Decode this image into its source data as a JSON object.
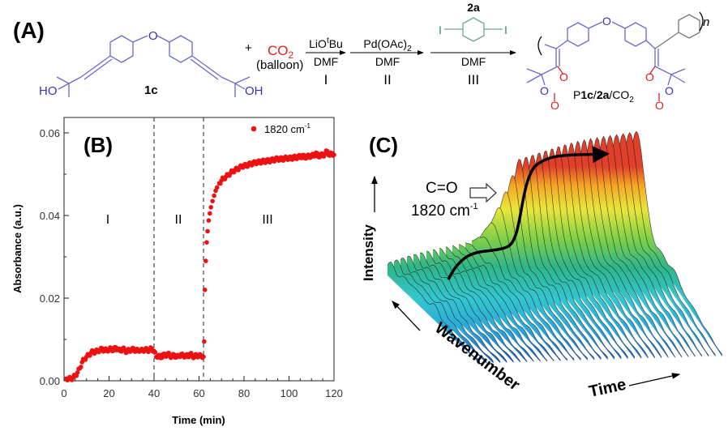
{
  "panel_a": {
    "label": "(A)",
    "reactant_label": "1c",
    "reactant_ho": "HO",
    "reactant_oh": "OH",
    "ether_o": "O",
    "plus": "+",
    "co2": {
      "main": "CO",
      "sub": "2"
    },
    "balloon": "(balloon)",
    "steps": [
      {
        "above_main": "LiO",
        "above_sup": "t",
        "above_tail": "Bu",
        "below": "DMF",
        "roman": "I"
      },
      {
        "above_main": "Pd(OAc)",
        "above_sub": "2",
        "below": "DMF",
        "roman": "II"
      },
      {
        "above_main": "2a",
        "below": "DMF",
        "roman": "III",
        "iodo_left": "I",
        "iodo_right": "I"
      }
    ],
    "product": {
      "p": "P",
      "c": "1c",
      "slash1": "/",
      "a": "2a",
      "slash2": "/CO",
      "sub": "2",
      "n": "n",
      "o": "O"
    }
  },
  "colors": {
    "monomer": "#3333bb",
    "co2": "#e02020",
    "comonomer": "#2a8a6a",
    "data": "#ee1111"
  },
  "chart_data": [
    {
      "panel_label": "(B)",
      "type": "scatter",
      "xlabel": "Time (min)",
      "ylabel": "Absorbance (a.u.)",
      "xlim": [
        0,
        120
      ],
      "ylim": [
        0,
        0.06
      ],
      "xticks": [
        "0",
        "20",
        "40",
        "60",
        "80",
        "100",
        "120"
      ],
      "yticks": [
        "0.00",
        "0.02",
        "0.04",
        "0.06"
      ],
      "legend": {
        "label": "1820 cm",
        "sup": "-1",
        "position": "top-right"
      },
      "region_labels": [
        "I",
        "II",
        "III"
      ],
      "dividers_x": [
        40,
        62
      ],
      "series": [
        {
          "name": "1820 cm-1",
          "x": [
            1,
            2,
            3,
            4,
            5,
            6,
            7,
            8,
            9,
            10,
            11,
            12,
            13,
            14,
            15,
            16,
            17,
            18,
            19,
            20,
            21,
            22,
            23,
            24,
            25,
            26,
            27,
            28,
            29,
            30,
            31,
            32,
            33,
            34,
            35,
            36,
            37,
            38,
            39,
            40,
            41,
            42,
            43,
            44,
            45,
            46,
            47,
            48,
            49,
            50,
            51,
            52,
            53,
            54,
            55,
            56,
            57,
            58,
            59,
            60,
            61,
            62,
            62.3,
            62.6,
            63,
            63.4,
            63.8,
            64.3,
            64.8,
            65.3,
            66,
            66.7,
            67.4,
            68,
            69,
            70,
            71,
            72,
            73,
            74,
            75,
            76,
            77,
            78,
            79,
            80,
            81,
            82,
            83,
            84,
            85,
            86,
            87,
            88,
            89,
            90,
            91,
            92,
            93,
            94,
            95,
            96,
            97,
            98,
            99,
            100,
            101,
            102,
            103,
            104,
            105,
            106,
            107,
            108,
            109,
            110,
            111,
            112,
            113,
            114,
            115,
            116,
            117,
            118,
            119,
            120
          ],
          "y": [
            0.0005,
            0.0006,
            0.0004,
            0.0008,
            0.0012,
            0.002,
            0.003,
            0.0045,
            0.0052,
            0.0058,
            0.0062,
            0.0068,
            0.0071,
            0.0069,
            0.0074,
            0.0073,
            0.0078,
            0.0072,
            0.0076,
            0.0074,
            0.0079,
            0.0073,
            0.0081,
            0.0075,
            0.0072,
            0.0078,
            0.0074,
            0.0069,
            0.0076,
            0.0073,
            0.0078,
            0.0071,
            0.0075,
            0.0074,
            0.0072,
            0.0077,
            0.0073,
            0.0075,
            0.0078,
            0.0072,
            0.0058,
            0.0062,
            0.0055,
            0.0064,
            0.0059,
            0.0066,
            0.0061,
            0.0058,
            0.0063,
            0.0057,
            0.006,
            0.0064,
            0.0059,
            0.0062,
            0.0058,
            0.0065,
            0.0061,
            0.0057,
            0.0063,
            0.0059,
            0.0061,
            0.0058,
            0.0095,
            0.022,
            0.029,
            0.0335,
            0.0362,
            0.0388,
            0.0405,
            0.042,
            0.0435,
            0.0448,
            0.046,
            0.0468,
            0.0478,
            0.0485,
            0.049,
            0.0494,
            0.0498,
            0.0503,
            0.0507,
            0.051,
            0.0512,
            0.0516,
            0.0518,
            0.0522,
            0.0519,
            0.0525,
            0.0523,
            0.0528,
            0.0526,
            0.0531,
            0.0527,
            0.0533,
            0.0529,
            0.0534,
            0.053,
            0.0536,
            0.0532,
            0.0538,
            0.0535,
            0.0539,
            0.0534,
            0.054,
            0.0537,
            0.0541,
            0.0536,
            0.0543,
            0.0538,
            0.0544,
            0.054,
            0.0546,
            0.0539,
            0.0545,
            0.0541,
            0.0547,
            0.0543,
            0.0552,
            0.0542,
            0.0548,
            0.0544,
            0.055,
            0.0556,
            0.0545,
            0.0551,
            0.0547
          ]
        }
      ]
    },
    {
      "panel_label": "(C)",
      "type": "area",
      "annotation_main": "C=O",
      "annotation_value": "1820 cm",
      "annotation_sup": "-1",
      "z_axis_label": "Intensity",
      "y_axis_label": "Wavenumber",
      "x_axis_label": "Time"
    }
  ]
}
